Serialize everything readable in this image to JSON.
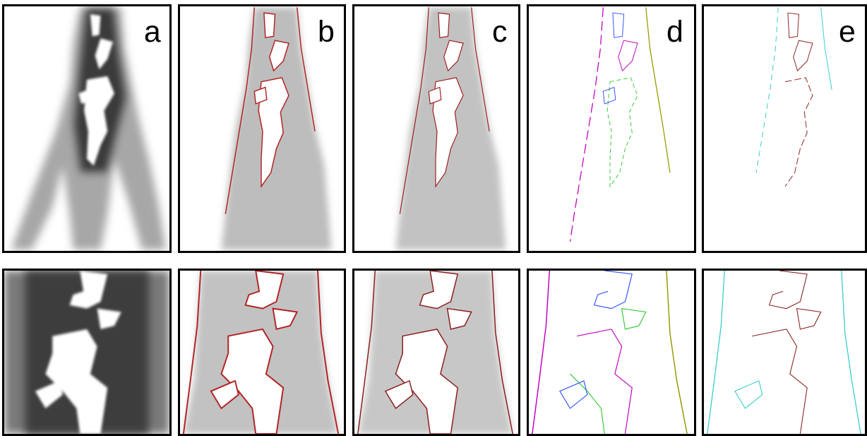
{
  "figure": {
    "top_row_labels": [
      "a",
      "b",
      "c",
      "d",
      "e"
    ],
    "panel_count_per_row": 5,
    "row_count": 2,
    "colors": {
      "background": "#ffffff",
      "border": "#000000",
      "tissue": "#6e6e6e",
      "edge_red": "#b22222",
      "edge_magenta": "#c000c0",
      "edge_green": "#33cc33",
      "edge_blue": "#3355ff",
      "edge_cyan": "#33cccc",
      "edge_olive": "#999900"
    }
  }
}
